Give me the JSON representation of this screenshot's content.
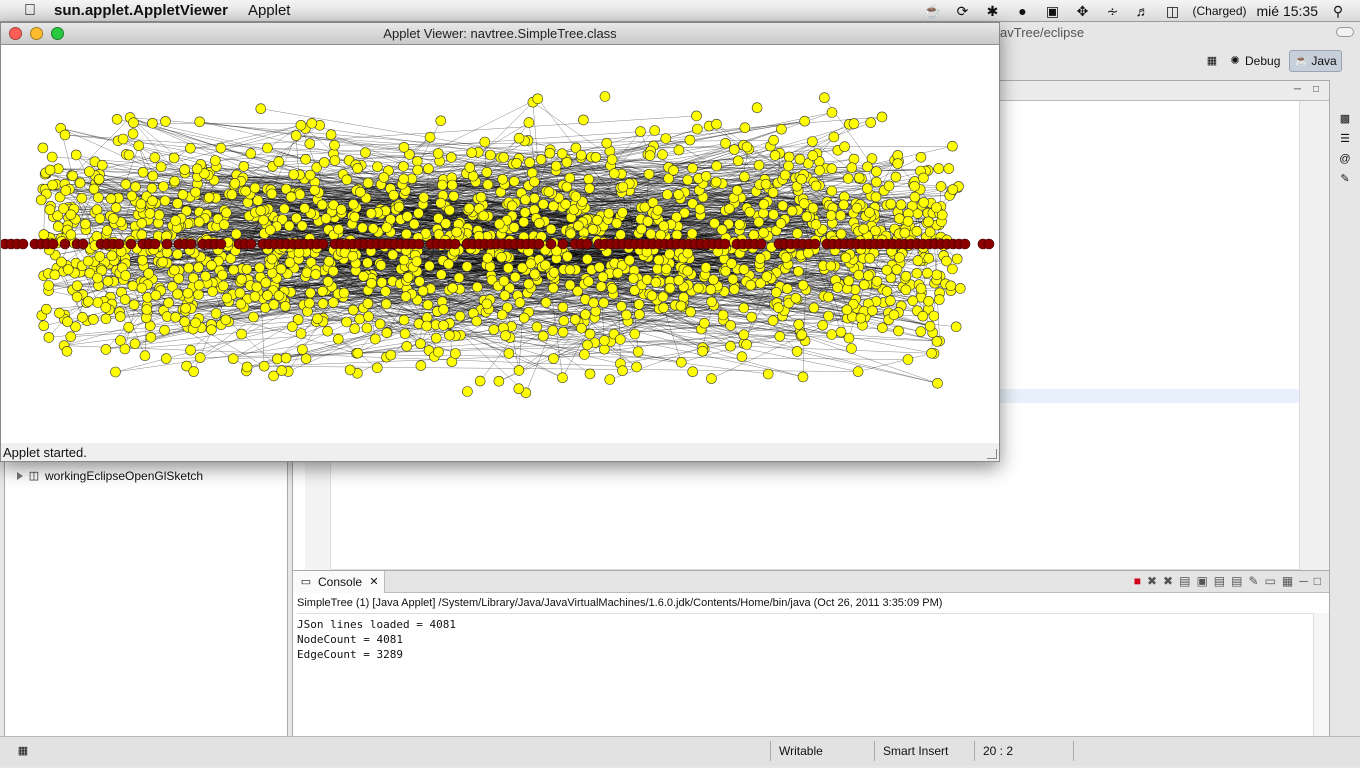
{
  "menubar": {
    "app_name": "sun.applet.AppletViewer",
    "menu": [
      "Applet"
    ],
    "battery_label": "(Charged)",
    "clock": "mié 15:35",
    "icons": [
      "java-cup-icon",
      "sync-icon",
      "bluetooth-icon",
      "evernote-icon",
      "display-icon",
      "move-icon",
      "wifi-icon",
      "volume-icon",
      "battery-icon",
      "spotlight-icon"
    ]
  },
  "eclipse": {
    "title_tail": "avTree/eclipse",
    "perspectives": [
      {
        "label": "Debug",
        "icon": "bug-icon",
        "active": false
      },
      {
        "label": "Java",
        "icon": "java-perspective-icon",
        "active": true
      }
    ],
    "explorer": {
      "item_label": "workingEclipseOpenGlSketch"
    },
    "console": {
      "tab_label": "Console",
      "description": "SimpleTree (1) [Java Applet] /System/Library/Java/JavaVirtualMachines/1.6.0.jdk/Contents/Home/bin/java (Oct 26, 2011 3:35:09 PM)",
      "lines": [
        "JSon lines loaded = 4081",
        "NodeCount = 4081",
        "EdgeCount = 3289"
      ]
    },
    "status": {
      "writable": "Writable",
      "insert_mode": "Smart Insert",
      "position": "20 : 2"
    }
  },
  "applet_window": {
    "title": "Applet Viewer: navtree.SimpleTree.class",
    "status": "Applet started.",
    "graph": {
      "node_color": "#ffff00",
      "root_node_color": "#8b0000",
      "edge_color": "#000000"
    }
  },
  "colors": {
    "close": "#ff5f57",
    "minimize": "#febc2e",
    "zoom": "#28c840"
  }
}
